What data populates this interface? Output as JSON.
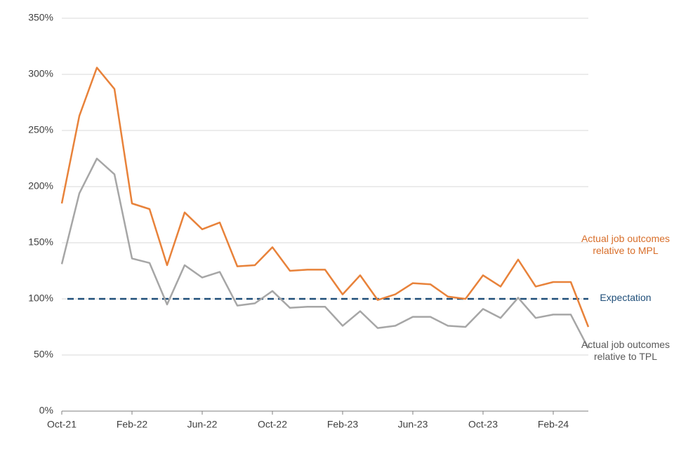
{
  "chart_data": {
    "type": "line",
    "categories": [
      "Oct-21",
      null,
      null,
      null,
      "Feb-22",
      null,
      null,
      null,
      "Jun-22",
      null,
      null,
      null,
      "Oct-22",
      null,
      null,
      null,
      "Feb-23",
      null,
      null,
      null,
      "Jun-23",
      null,
      null,
      null,
      "Oct-23",
      null,
      null,
      null,
      "Feb-24",
      null,
      null
    ],
    "series": [
      {
        "name": "Actual job outcomes relative to MPL",
        "color": "#e8823a",
        "values": [
          185,
          263,
          306,
          287,
          185,
          180,
          130,
          177,
          162,
          168,
          129,
          130,
          146,
          125,
          126,
          126,
          104,
          121,
          99,
          104,
          114,
          113,
          102,
          100,
          121,
          111,
          135,
          111,
          115,
          115,
          75
        ]
      },
      {
        "name": "Actual job outcomes relative to TPL",
        "color": "#a6a6a6",
        "values": [
          131,
          194,
          225,
          211,
          136,
          132,
          95,
          130,
          119,
          124,
          94,
          96,
          107,
          92,
          93,
          93,
          76,
          89,
          74,
          76,
          84,
          84,
          76,
          75,
          91,
          83,
          101,
          83,
          86,
          86,
          56
        ]
      }
    ],
    "reference_line": {
      "name": "Expectation",
      "value": 100,
      "color": "#1f4e79"
    },
    "ylim": [
      0,
      350
    ],
    "yticks": [
      {
        "value": 0,
        "label": "0%"
      },
      {
        "value": 50,
        "label": "50%"
      },
      {
        "value": 100,
        "label": "100%"
      },
      {
        "value": 150,
        "label": "150%"
      },
      {
        "value": 200,
        "label": "200%"
      },
      {
        "value": 250,
        "label": "250%"
      },
      {
        "value": 300,
        "label": "300%"
      },
      {
        "value": 350,
        "label": "350%"
      }
    ],
    "grid": true
  }
}
